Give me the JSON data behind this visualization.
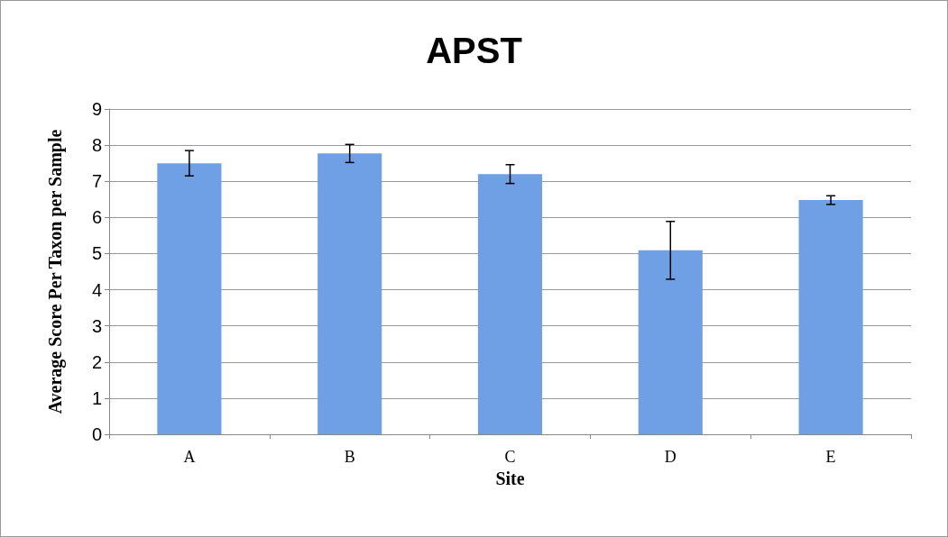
{
  "chart_data": {
    "type": "bar",
    "title": "APST",
    "xlabel": "Site",
    "ylabel": "Average Score Per Taxon per Sample",
    "categories": [
      "A",
      "B",
      "C",
      "D",
      "E"
    ],
    "values": [
      7.5,
      7.77,
      7.2,
      5.09,
      6.48
    ],
    "errors": [
      0.35,
      0.25,
      0.26,
      0.8,
      0.12
    ],
    "color": "#6f9fe4",
    "ylim": [
      0,
      9
    ],
    "yticks": [
      0,
      1,
      2,
      3,
      4,
      5,
      6,
      7,
      8,
      9
    ],
    "grid": "y",
    "legend": false
  }
}
